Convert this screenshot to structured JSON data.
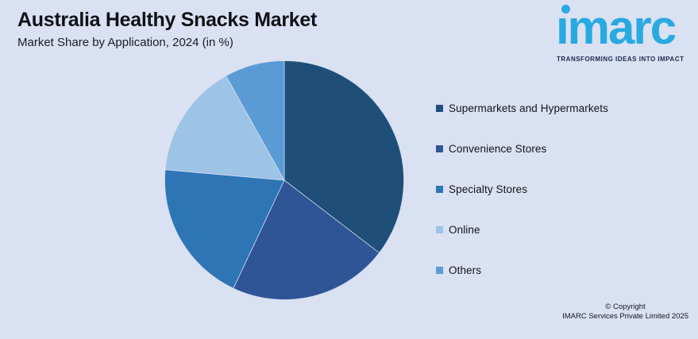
{
  "page": {
    "background": "#D9E1F2"
  },
  "header": {
    "title": "Australia Healthy Snacks Market",
    "subtitle": "Market Share by Application, 2024 (in %)"
  },
  "logo": {
    "text": "imarc",
    "tagline": "TRANSFORMING IDEAS INTO IMPACT",
    "brand_color": "#29A9E1",
    "tagline_color": "#1B2A4D"
  },
  "chart_data": {
    "type": "pie",
    "title": "Australia Healthy Snacks Market",
    "subtitle": "Market Share by Application, 2024 (in %)",
    "unit": "%",
    "labels": [
      "Supermarkets and Hypermarkets",
      "Convenience Stores",
      "Specialty Stores",
      "Online",
      "Others"
    ],
    "values": [
      35.4,
      21.6,
      19.4,
      15.5,
      8.1
    ],
    "colors": [
      "#1F4E79",
      "#2F5597",
      "#2E75B6",
      "#9DC3E6",
      "#5B9BD5"
    ],
    "start_angle_deg": 0,
    "direction": "clockwise",
    "legend_position": "right",
    "data_labels_shown": false
  },
  "footer": {
    "copyright_line1": "© Copyright",
    "copyright_line2": "IMARC Services Private Limited 2025"
  }
}
